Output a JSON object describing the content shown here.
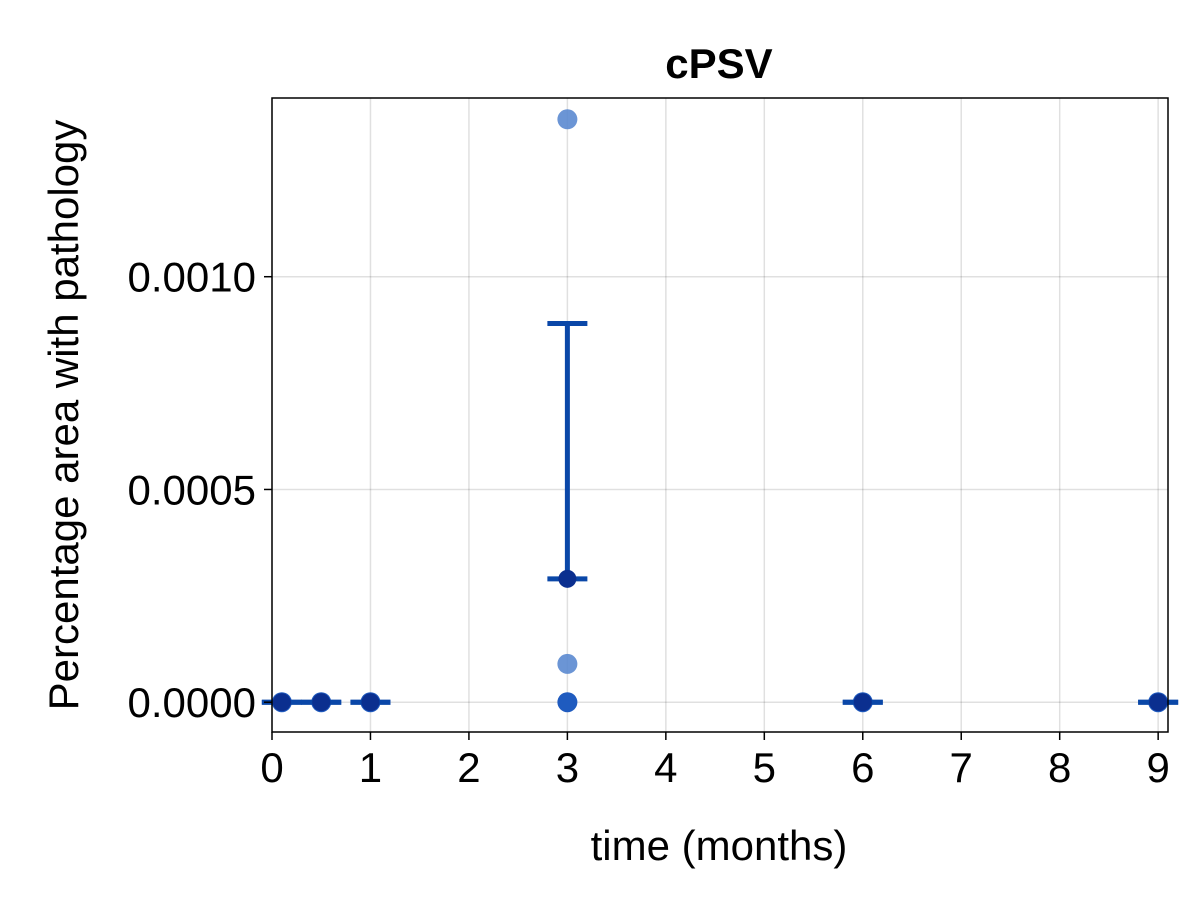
{
  "chart_data": {
    "type": "scatter",
    "title": "cPSV",
    "xlabel": "time (months)",
    "ylabel": "Percentage area with pathology",
    "xlim": [
      0,
      9.1
    ],
    "ylim": [
      -7e-05,
      0.00142
    ],
    "xticks": [
      0,
      1,
      2,
      3,
      4,
      5,
      6,
      7,
      8,
      9
    ],
    "xtick_labels": [
      "0",
      "1",
      "2",
      "3",
      "4",
      "5",
      "6",
      "7",
      "8",
      "9"
    ],
    "yticks": [
      0.0,
      0.0005,
      0.001
    ],
    "ytick_labels": [
      "0.0000",
      "0.0005",
      "0.0010"
    ],
    "grid": true,
    "individual_points": [
      {
        "x": 0.1,
        "y": 0.0
      },
      {
        "x": 0.5,
        "y": 0.0
      },
      {
        "x": 1,
        "y": 0.0
      },
      {
        "x": 3,
        "y": 0.00137
      },
      {
        "x": 3,
        "y": 9e-05
      },
      {
        "x": 3,
        "y": 0.0
      },
      {
        "x": 6,
        "y": 0.0
      },
      {
        "x": 9,
        "y": 0.0
      }
    ],
    "summary": [
      {
        "x": 0.1,
        "mean": 0.0,
        "lower": 0.0,
        "upper": 0.0
      },
      {
        "x": 0.5,
        "mean": 0.0,
        "lower": 0.0,
        "upper": 0.0
      },
      {
        "x": 1,
        "mean": 0.0,
        "lower": 0.0,
        "upper": 0.0
      },
      {
        "x": 3,
        "mean": 0.00029,
        "lower": 0.00029,
        "upper": 0.00089
      },
      {
        "x": 6,
        "mean": 0.0,
        "lower": 0.0,
        "upper": 0.0
      },
      {
        "x": 9,
        "mean": 0.0,
        "lower": 0.0,
        "upper": 0.0
      }
    ],
    "colors": {
      "individual": "#5b8ad0",
      "individual_zero": "#1f5bbf",
      "errorbar": "#0a47a8",
      "mean": "#0b2f8f"
    }
  }
}
